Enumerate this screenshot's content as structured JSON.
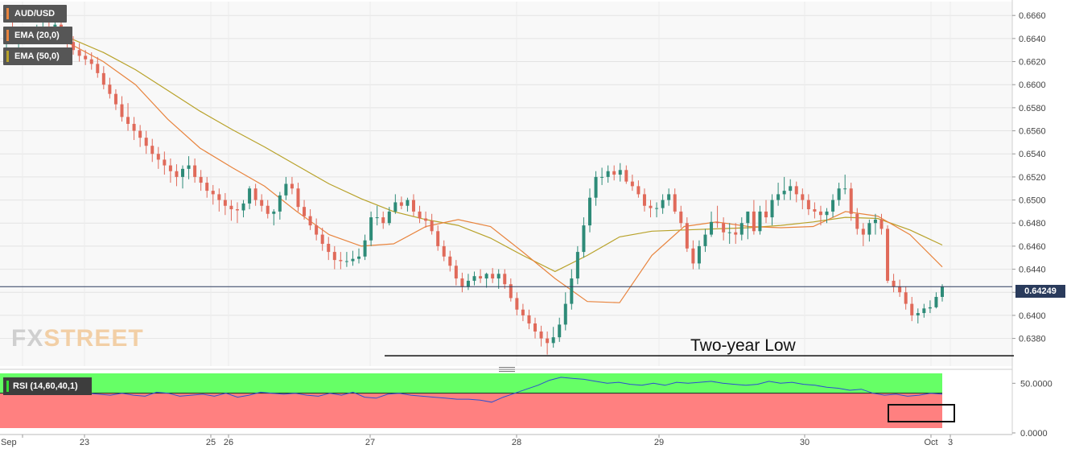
{
  "legend": {
    "pair": "AUD/USD",
    "ema20": "EMA (20,0)",
    "ema50": "EMA (50,0)",
    "rsi": "RSI (14,60,40,1)"
  },
  "current_price_label": "0.64249",
  "logo": {
    "fx": "FX",
    "street": "STREET"
  },
  "colors": {
    "up": "#2e8b78",
    "down": "#e06a5a",
    "ema20": "#e8843e",
    "ema50": "#b8a22a",
    "rsi_line": "#2c4fd0",
    "rsi_upper_zone": "#66ff66",
    "rsi_lower_zone": "#ff8080",
    "price_line": "#2a3b5c"
  },
  "chart_data": [
    {
      "type": "candlestick",
      "title": "AUD/USD",
      "x_tick_labels": [
        "Sep",
        "23",
        "25",
        "26",
        "27",
        "28",
        "29",
        "30",
        "Oct",
        "3"
      ],
      "y_tick_labels": [
        "0.6660",
        "0.6640",
        "0.6620",
        "0.6600",
        "0.6580",
        "0.6560",
        "0.6540",
        "0.6520",
        "0.6500",
        "0.6480",
        "0.6460",
        "0.6440",
        "0.6420",
        "0.6400",
        "0.6380"
      ],
      "ylim": [
        0.6356,
        0.6672
      ],
      "current_price": 0.64249,
      "annotation": "Two-year Low",
      "support_level": 0.6365,
      "grid": true,
      "series": [
        {
          "name": "EMA (20,0)",
          "values": [
            0.664,
            0.6645,
            0.6635,
            0.662,
            0.66,
            0.657,
            0.6545,
            0.6528,
            0.6512,
            0.649,
            0.647,
            0.646,
            0.6462,
            0.6477,
            0.6483,
            0.6477,
            0.6455,
            0.6432,
            0.6412,
            0.6411,
            0.6452,
            0.6477,
            0.6481,
            0.6477,
            0.6476,
            0.6477,
            0.649,
            0.6486,
            0.647,
            0.6442
          ]
        },
        {
          "name": "EMA (50,0)",
          "values": [
            0.6646,
            0.6648,
            0.664,
            0.6628,
            0.6613,
            0.6595,
            0.6577,
            0.6561,
            0.6546,
            0.653,
            0.6514,
            0.6501,
            0.649,
            0.6483,
            0.6478,
            0.6467,
            0.6452,
            0.6438,
            0.6452,
            0.6468,
            0.6473,
            0.6474,
            0.6475,
            0.6476,
            0.6478,
            0.6481,
            0.6485,
            0.6484,
            0.6474,
            0.6461
          ]
        }
      ],
      "candles": {
        "o": [
          0.664,
          0.6643,
          0.664,
          0.6643,
          0.6643,
          0.6645,
          0.6648,
          0.6649,
          0.6648,
          0.6652,
          0.6643,
          0.6637,
          0.663,
          0.6625,
          0.6622,
          0.6618,
          0.661,
          0.66,
          0.6592,
          0.6583,
          0.6572,
          0.6566,
          0.656,
          0.6554,
          0.6547,
          0.654,
          0.6535,
          0.653,
          0.6525,
          0.652,
          0.6527,
          0.653,
          0.652,
          0.6515,
          0.6508,
          0.6505,
          0.65,
          0.6495,
          0.6492,
          0.6491,
          0.6497,
          0.651,
          0.65,
          0.6495,
          0.6488,
          0.649,
          0.6504,
          0.6514,
          0.651,
          0.6494,
          0.6486,
          0.6478,
          0.647,
          0.6462,
          0.6455,
          0.6448,
          0.6447,
          0.6447,
          0.6449,
          0.6451,
          0.6465,
          0.6485,
          0.6485,
          0.648,
          0.649,
          0.6498,
          0.6495,
          0.65,
          0.649,
          0.6484,
          0.6482,
          0.6473,
          0.646,
          0.6451,
          0.6443,
          0.6432,
          0.6425,
          0.643,
          0.6434,
          0.6432,
          0.6436,
          0.6432,
          0.6436,
          0.6427,
          0.6415,
          0.6405,
          0.64,
          0.6393,
          0.6386,
          0.638,
          0.6376,
          0.6381,
          0.6392,
          0.641,
          0.6432,
          0.6455,
          0.6478,
          0.6502,
          0.652,
          0.652,
          0.6525,
          0.6522,
          0.6526,
          0.6516,
          0.6512,
          0.6505,
          0.6495,
          0.6493,
          0.6493,
          0.65,
          0.6505,
          0.649,
          0.648,
          0.6458,
          0.6445,
          0.646,
          0.647,
          0.6481,
          0.648,
          0.6472,
          0.6472,
          0.647,
          0.648,
          0.649,
          0.6473,
          0.649,
          0.6485,
          0.65,
          0.6505,
          0.6508,
          0.6512,
          0.6505,
          0.65,
          0.6492,
          0.649,
          0.6487,
          0.649,
          0.65,
          0.651,
          0.651,
          0.6488,
          0.6475,
          0.647,
          0.648,
          0.6483,
          0.6475,
          0.643,
          0.6425,
          0.642,
          0.641,
          0.64,
          0.6402,
          0.6406,
          0.6407,
          0.6416
        ],
        "h": [
          0.665,
          0.6655,
          0.6648,
          0.665,
          0.665,
          0.6652,
          0.6656,
          0.6658,
          0.6655,
          0.6656,
          0.665,
          0.6642,
          0.6636,
          0.663,
          0.6628,
          0.6624,
          0.6616,
          0.6606,
          0.6596,
          0.659,
          0.6584,
          0.6572,
          0.6565,
          0.656,
          0.6553,
          0.6546,
          0.6542,
          0.6536,
          0.6531,
          0.653,
          0.6538,
          0.6536,
          0.6526,
          0.652,
          0.6513,
          0.651,
          0.6506,
          0.65,
          0.6498,
          0.65,
          0.6512,
          0.6514,
          0.6505,
          0.65,
          0.6492,
          0.6507,
          0.652,
          0.652,
          0.6515,
          0.65,
          0.6492,
          0.6484,
          0.6476,
          0.6468,
          0.646,
          0.6455,
          0.6455,
          0.6456,
          0.6458,
          0.647,
          0.649,
          0.6495,
          0.649,
          0.6494,
          0.6505,
          0.6503,
          0.6502,
          0.6505,
          0.6495,
          0.649,
          0.6488,
          0.6478,
          0.6465,
          0.6456,
          0.6448,
          0.6437,
          0.6436,
          0.6438,
          0.644,
          0.6437,
          0.6441,
          0.644,
          0.644,
          0.6432,
          0.642,
          0.641,
          0.6405,
          0.6398,
          0.6391,
          0.6386,
          0.639,
          0.6398,
          0.642,
          0.644,
          0.646,
          0.6485,
          0.651,
          0.6525,
          0.6528,
          0.653,
          0.653,
          0.6532,
          0.653,
          0.6522,
          0.6517,
          0.651,
          0.65,
          0.6498,
          0.6505,
          0.651,
          0.651,
          0.6495,
          0.6485,
          0.6465,
          0.6465,
          0.6475,
          0.649,
          0.6495,
          0.6485,
          0.648,
          0.648,
          0.6485,
          0.649,
          0.65,
          0.6495,
          0.65,
          0.6505,
          0.6515,
          0.652,
          0.6518,
          0.6516,
          0.651,
          0.6505,
          0.6498,
          0.6495,
          0.6493,
          0.6505,
          0.6515,
          0.6522,
          0.6515,
          0.6493,
          0.648,
          0.6483,
          0.6488,
          0.6488,
          0.6478,
          0.6436,
          0.6431,
          0.6425,
          0.6416,
          0.6406,
          0.641,
          0.6413,
          0.642,
          0.6427
        ],
        "l": [
          0.663,
          0.6635,
          0.6632,
          0.6635,
          0.6636,
          0.6638,
          0.664,
          0.6642,
          0.664,
          0.6642,
          0.6632,
          0.6626,
          0.662,
          0.6617,
          0.6613,
          0.6606,
          0.6596,
          0.6588,
          0.6578,
          0.6568,
          0.656,
          0.6552,
          0.6546,
          0.654,
          0.6533,
          0.6527,
          0.6522,
          0.6515,
          0.6512,
          0.651,
          0.6518,
          0.6515,
          0.6508,
          0.6502,
          0.6496,
          0.649,
          0.6487,
          0.6482,
          0.648,
          0.6485,
          0.6492,
          0.6495,
          0.649,
          0.6484,
          0.6478,
          0.6483,
          0.65,
          0.6505,
          0.649,
          0.6483,
          0.6474,
          0.6465,
          0.6456,
          0.6448,
          0.644,
          0.644,
          0.6442,
          0.6443,
          0.6445,
          0.6448,
          0.646,
          0.6478,
          0.6475,
          0.6478,
          0.6488,
          0.6492,
          0.649,
          0.6486,
          0.648,
          0.6476,
          0.647,
          0.6456,
          0.6447,
          0.6438,
          0.6426,
          0.642,
          0.6422,
          0.6426,
          0.6428,
          0.6424,
          0.6428,
          0.6423,
          0.6423,
          0.6412,
          0.64,
          0.6395,
          0.6388,
          0.638,
          0.6373,
          0.6366,
          0.6372,
          0.6377,
          0.6387,
          0.6405,
          0.6427,
          0.645,
          0.6472,
          0.6495,
          0.6513,
          0.6515,
          0.6517,
          0.6516,
          0.6514,
          0.6508,
          0.6502,
          0.649,
          0.6485,
          0.6485,
          0.6488,
          0.6495,
          0.6488,
          0.6476,
          0.6455,
          0.644,
          0.644,
          0.6455,
          0.6468,
          0.6476,
          0.6465,
          0.6462,
          0.6462,
          0.6465,
          0.6466,
          0.647,
          0.647,
          0.648,
          0.6478,
          0.6495,
          0.65,
          0.65,
          0.6498,
          0.6492,
          0.6487,
          0.6484,
          0.6478,
          0.648,
          0.6485,
          0.6495,
          0.6505,
          0.6482,
          0.647,
          0.646,
          0.6464,
          0.647,
          0.647,
          0.6428,
          0.642,
          0.6416,
          0.6405,
          0.6395,
          0.6393,
          0.6398,
          0.6402,
          0.6406,
          0.6412
        ],
        "c": [
          0.6643,
          0.664,
          0.6643,
          0.6643,
          0.6645,
          0.6648,
          0.6649,
          0.6648,
          0.6652,
          0.6643,
          0.6637,
          0.663,
          0.6625,
          0.6622,
          0.6618,
          0.661,
          0.66,
          0.6592,
          0.6583,
          0.6572,
          0.6566,
          0.656,
          0.6554,
          0.6547,
          0.654,
          0.6535,
          0.653,
          0.6525,
          0.652,
          0.6527,
          0.653,
          0.652,
          0.6515,
          0.6508,
          0.6505,
          0.65,
          0.6495,
          0.6492,
          0.6491,
          0.6497,
          0.651,
          0.65,
          0.6495,
          0.6488,
          0.649,
          0.6504,
          0.6514,
          0.651,
          0.6494,
          0.6486,
          0.6478,
          0.647,
          0.6462,
          0.6455,
          0.6448,
          0.6447,
          0.6447,
          0.6449,
          0.6451,
          0.6465,
          0.6485,
          0.6485,
          0.648,
          0.649,
          0.6498,
          0.6495,
          0.65,
          0.649,
          0.6484,
          0.6482,
          0.6473,
          0.646,
          0.6451,
          0.6443,
          0.6432,
          0.6425,
          0.643,
          0.6434,
          0.6432,
          0.6436,
          0.6432,
          0.6436,
          0.6427,
          0.6415,
          0.6405,
          0.64,
          0.6393,
          0.6386,
          0.638,
          0.6376,
          0.6381,
          0.6392,
          0.641,
          0.6432,
          0.6455,
          0.6478,
          0.6502,
          0.652,
          0.652,
          0.6525,
          0.6522,
          0.6526,
          0.6516,
          0.6512,
          0.6505,
          0.6495,
          0.6493,
          0.6493,
          0.65,
          0.6505,
          0.649,
          0.648,
          0.6458,
          0.6445,
          0.646,
          0.647,
          0.6481,
          0.648,
          0.6472,
          0.6472,
          0.647,
          0.648,
          0.649,
          0.6473,
          0.649,
          0.6485,
          0.65,
          0.6505,
          0.6508,
          0.6512,
          0.6505,
          0.65,
          0.6492,
          0.649,
          0.6487,
          0.649,
          0.65,
          0.651,
          0.651,
          0.6488,
          0.6475,
          0.647,
          0.648,
          0.6483,
          0.6475,
          0.643,
          0.6425,
          0.642,
          0.641,
          0.64,
          0.6402,
          0.6406,
          0.6407,
          0.6416,
          0.6425
        ]
      }
    },
    {
      "type": "line",
      "title": "RSI (14,60,40,1)",
      "y_tick_labels": [
        "50.0000",
        "0.0000"
      ],
      "ylim": [
        0,
        60
      ],
      "upper_band": 60,
      "lower_band": 40,
      "series": [
        {
          "name": "RSI (14,60,40,1)",
          "values": [
            46,
            45,
            44,
            45,
            42,
            41,
            42,
            40,
            39,
            38,
            40,
            38,
            37,
            41,
            40,
            37,
            38,
            39,
            37,
            40,
            36,
            38,
            41,
            40,
            39,
            40,
            38,
            37,
            40,
            38,
            41,
            36,
            35,
            39,
            40,
            38,
            37,
            36,
            35,
            34,
            34,
            33,
            31,
            36,
            40,
            44,
            48,
            53,
            56,
            55,
            54,
            52,
            50,
            51,
            49,
            48,
            50,
            48,
            51,
            50,
            51,
            52,
            50,
            49,
            48,
            49,
            52,
            50,
            51,
            49,
            48,
            46,
            45,
            43,
            44,
            40,
            38,
            39,
            37,
            38,
            40,
            39
          ]
        }
      ]
    }
  ]
}
